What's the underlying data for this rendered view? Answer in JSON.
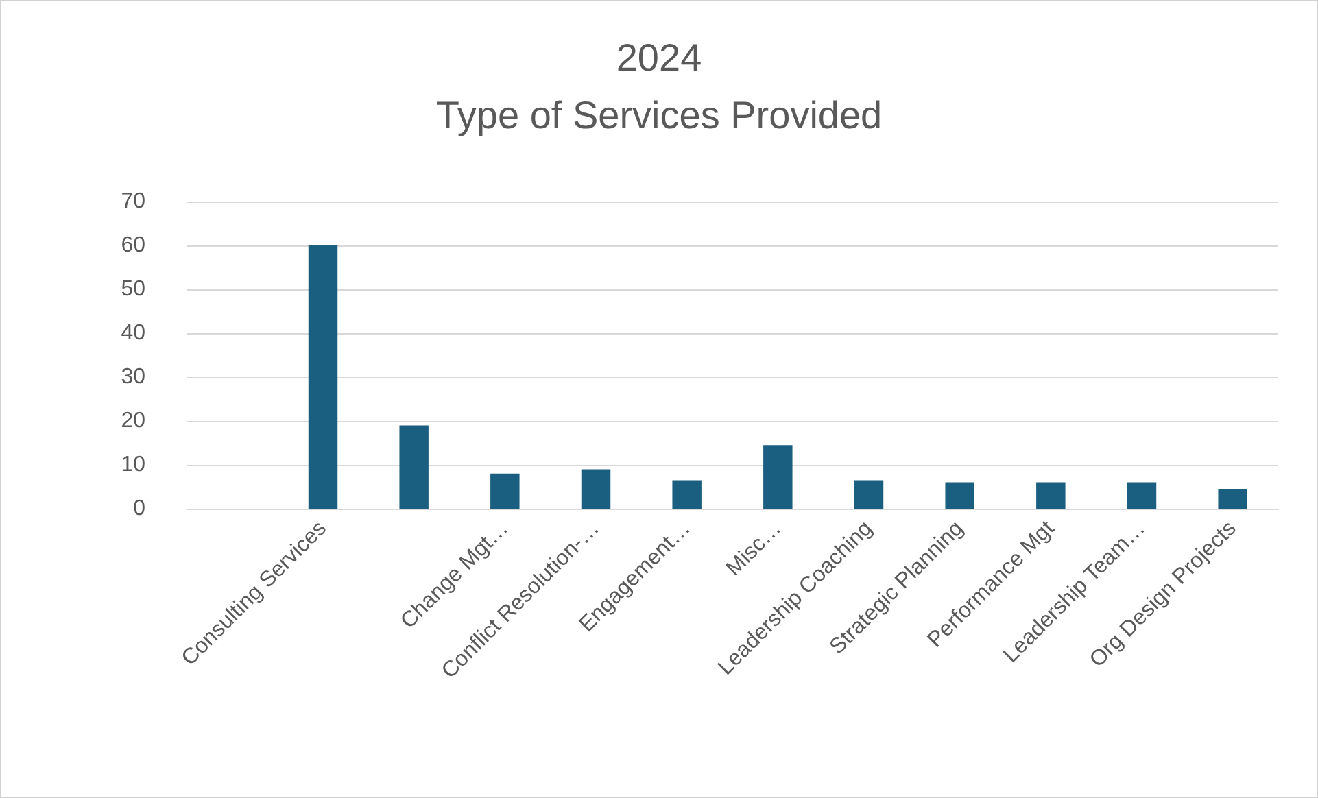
{
  "chart_data": {
    "type": "bar",
    "title": "2024",
    "subtitle": "Type of Services Provided",
    "categories": [
      null,
      "Consulting Services",
      null,
      "Change Mgt…",
      "Conflict Resolution-…",
      "Engagement…",
      "Misc…",
      "Leadership Coaching",
      "Strategic Planning",
      "Performance Mgt",
      "Leadership Team…",
      "Org Design Projects"
    ],
    "values": [
      null,
      60,
      19,
      8,
      9,
      6.5,
      14.5,
      6.5,
      6,
      6,
      6,
      4.5
    ],
    "color": "#1a5e80",
    "ylim": [
      0,
      70
    ],
    "yticks": [
      0,
      10,
      20,
      30,
      40,
      50,
      60,
      70
    ],
    "grid": "y"
  }
}
